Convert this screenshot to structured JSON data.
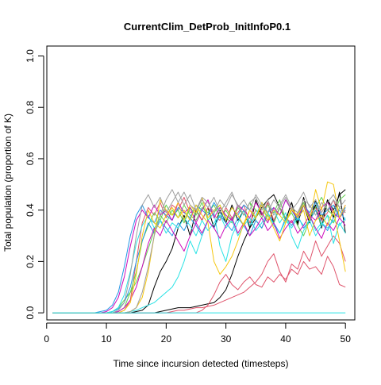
{
  "chart_data": {
    "type": "line",
    "title": "CurrentClim_DetProb_InitInfoP0.1",
    "xlabel": "Time since incursion detected (timesteps)",
    "ylabel": "Total population (proportion of K)",
    "xlim": [
      1,
      50
    ],
    "ylim": [
      0,
      1
    ],
    "x_ticks": [
      0,
      10,
      20,
      30,
      40,
      50
    ],
    "y_ticks": [
      0.0,
      0.2,
      0.4,
      0.6,
      0.8,
      1.0
    ],
    "y_tick_labels": [
      "0.0",
      "0.2",
      "0.4",
      "0.6",
      "0.8",
      "1.0"
    ],
    "grid": false,
    "legend": "none",
    "x": [
      1,
      2,
      3,
      4,
      5,
      6,
      7,
      8,
      9,
      10,
      11,
      12,
      13,
      14,
      15,
      16,
      17,
      18,
      19,
      20,
      21,
      22,
      23,
      24,
      25,
      26,
      27,
      28,
      29,
      30,
      31,
      32,
      33,
      34,
      35,
      36,
      37,
      38,
      39,
      40,
      41,
      42,
      43,
      44,
      45,
      46,
      47,
      48,
      49,
      50
    ],
    "series": [
      {
        "color": "#000000",
        "values": [
          0,
          0,
          0,
          0,
          0,
          0,
          0,
          0,
          0,
          0,
          0,
          0,
          0,
          0,
          0.005,
          0.01,
          0.03,
          0.1,
          0.16,
          0.2,
          0.25,
          0.33,
          0.38,
          0.3,
          0.4,
          0.36,
          0.41,
          0.33,
          0.4,
          0.35,
          0.42,
          0.36,
          0.4,
          0.33,
          0.44,
          0.38,
          0.43,
          0.35,
          0.41,
          0.36,
          0.43,
          0.34,
          0.45,
          0.36,
          0.42,
          0.33,
          0.44,
          0.37,
          0.47,
          0.31
        ]
      },
      {
        "color": "#000000",
        "values": [
          0,
          0,
          0,
          0,
          0,
          0,
          0,
          0,
          0,
          0,
          0,
          0,
          0,
          0,
          0,
          0,
          0,
          0,
          0.005,
          0.01,
          0.015,
          0.02,
          0.02,
          0.02,
          0.025,
          0.03,
          0.035,
          0.04,
          0.06,
          0.09,
          0.15,
          0.22,
          0.28,
          0.33,
          0.37,
          0.41,
          0.44,
          0.46,
          0.41,
          0.36,
          0.43,
          0.35,
          0.42,
          0.35,
          0.44,
          0.36,
          0.44,
          0.4,
          0.46,
          0.48
        ]
      },
      {
        "color": "#DF536B",
        "values": [
          0,
          0,
          0,
          0,
          0,
          0,
          0,
          0,
          0,
          0,
          0,
          0,
          0,
          0,
          0,
          0,
          0,
          0,
          0,
          0,
          0.005,
          0.01,
          0.01,
          0.015,
          0.02,
          0.02,
          0.025,
          0.03,
          0.04,
          0.05,
          0.06,
          0.07,
          0.08,
          0.1,
          0.12,
          0.15,
          0.2,
          0.23,
          0.16,
          0.12,
          0.19,
          0.17,
          0.24,
          0.2,
          0.28,
          0.22,
          0.26,
          0.3,
          0.27,
          0.2
        ]
      },
      {
        "color": "#DF536B",
        "values": [
          0,
          0,
          0,
          0,
          0,
          0,
          0,
          0,
          0,
          0,
          0,
          0,
          0.01,
          0.05,
          0.2,
          0.35,
          0.41,
          0.38,
          0.43,
          0.37,
          0.42,
          0.4,
          0.45,
          0.39,
          0.4,
          0.36,
          0.41,
          0.38,
          0.36,
          0.41,
          0.37,
          0.39,
          0.42,
          0.35,
          0.4,
          0.38,
          0.43,
          0.36,
          0.41,
          0.37,
          0.35,
          0.39,
          0.43,
          0.38,
          0.41,
          0.36,
          0.39,
          0.44,
          0.37,
          0.4
        ]
      },
      {
        "color": "#DF536B",
        "values": [
          0,
          0,
          0,
          0,
          0,
          0,
          0,
          0,
          0,
          0,
          0,
          0,
          0,
          0,
          0,
          0,
          0,
          0,
          0,
          0,
          0,
          0,
          0,
          0,
          0,
          0.01,
          0.03,
          0.07,
          0.12,
          0.15,
          0.11,
          0.09,
          0.12,
          0.14,
          0.11,
          0.1,
          0.14,
          0.12,
          0.15,
          0.13,
          0.17,
          0.15,
          0.2,
          0.17,
          0.18,
          0.15,
          0.22,
          0.18,
          0.11,
          0.1
        ]
      },
      {
        "color": "#61D04F",
        "values": [
          0,
          0,
          0,
          0,
          0,
          0,
          0,
          0,
          0,
          0,
          0,
          0.005,
          0.02,
          0.08,
          0.16,
          0.28,
          0.34,
          0.39,
          0.36,
          0.42,
          0.38,
          0.4,
          0.35,
          0.41,
          0.38,
          0.43,
          0.36,
          0.39,
          0.42,
          0.37,
          0.35,
          0.41,
          0.38,
          0.43,
          0.36,
          0.33,
          0.38,
          0.35,
          0.41,
          0.36,
          0.39,
          0.34,
          0.3,
          0.36,
          0.4,
          0.34,
          0.38,
          0.35,
          0.41,
          0.39
        ]
      },
      {
        "color": "#61D04F",
        "values": [
          0,
          0,
          0,
          0,
          0,
          0,
          0,
          0,
          0,
          0,
          0.005,
          0.02,
          0.05,
          0.08,
          0.12,
          0.18,
          0.25,
          0.32,
          0.38,
          0.35,
          0.4,
          0.37,
          0.42,
          0.38,
          0.36,
          0.41,
          0.39,
          0.42,
          0.37,
          0.4,
          0.36,
          0.42,
          0.38,
          0.43,
          0.4,
          0.37,
          0.42,
          0.39,
          0.44,
          0.36,
          0.4,
          0.38,
          0.43,
          0.37,
          0.41,
          0.45,
          0.4,
          0.38,
          0.44,
          0.46
        ]
      },
      {
        "color": "#2297E6",
        "values": [
          0,
          0,
          0,
          0,
          0,
          0,
          0,
          0,
          0.005,
          0.01,
          0.03,
          0.08,
          0.18,
          0.3,
          0.38,
          0.42,
          0.37,
          0.35,
          0.4,
          0.38,
          0.36,
          0.41,
          0.39,
          0.37,
          0.42,
          0.4,
          0.38,
          0.43,
          0.39,
          0.36,
          0.41,
          0.38,
          0.42,
          0.4,
          0.37,
          0.43,
          0.39,
          0.41,
          0.38,
          0.44,
          0.4,
          0.36,
          0.42,
          0.39,
          0.43,
          0.38,
          0.4,
          0.42,
          0.37,
          0.41
        ]
      },
      {
        "color": "#2297E6",
        "values": [
          0,
          0,
          0,
          0,
          0,
          0,
          0,
          0,
          0,
          0,
          0.005,
          0.015,
          0.04,
          0.1,
          0.2,
          0.28,
          0.35,
          0.31,
          0.36,
          0.33,
          0.3,
          0.35,
          0.32,
          0.37,
          0.34,
          0.3,
          0.36,
          0.33,
          0.38,
          0.35,
          0.32,
          0.37,
          0.34,
          0.3,
          0.36,
          0.33,
          0.39,
          0.35,
          0.31,
          0.37,
          0.34,
          0.38,
          0.33,
          0.36,
          0.4,
          0.35,
          0.32,
          0.37,
          0.4,
          0.36
        ]
      },
      {
        "color": "#28E2E5",
        "values": [
          0,
          0,
          0,
          0,
          0,
          0,
          0,
          0,
          0,
          0,
          0,
          0,
          0,
          0.005,
          0.01,
          0.02,
          0.03,
          0.04,
          0.06,
          0.08,
          0.1,
          0.14,
          0.2,
          0.28,
          0.23,
          0.3,
          0.36,
          0.39,
          0.26,
          0.2,
          0.3,
          0.35,
          0.4,
          0.34,
          0.38,
          0.43,
          0.36,
          0.4,
          0.35,
          0.39,
          0.3,
          0.25,
          0.32,
          0.36,
          0.3,
          0.34,
          0.38,
          0.27,
          0.35,
          0.31
        ]
      },
      {
        "color": "#28E2E5",
        "values": [
          0,
          0,
          0,
          0,
          0,
          0,
          0,
          0,
          0,
          0,
          0.005,
          0.02,
          0.07,
          0.16,
          0.27,
          0.34,
          0.38,
          0.33,
          0.36,
          0.31,
          0.35,
          0.33,
          0.37,
          0.34,
          0.3,
          0.36,
          0.32,
          0.35,
          0.38,
          0.33,
          0.36,
          0.3,
          0.34,
          0.37,
          0.32,
          0.35,
          0.39,
          0.34,
          0.31,
          0.36,
          0.33,
          0.37,
          0.34,
          0.38,
          0.32,
          0.35,
          0.33,
          0.36,
          0.34,
          0.37
        ]
      },
      {
        "color": "#CD0BBC",
        "values": [
          0,
          0,
          0,
          0,
          0,
          0,
          0,
          0,
          0,
          0.005,
          0.02,
          0.06,
          0.14,
          0.26,
          0.36,
          0.4,
          0.37,
          0.42,
          0.38,
          0.4,
          0.36,
          0.43,
          0.39,
          0.41,
          0.35,
          0.4,
          0.44,
          0.37,
          0.41,
          0.38,
          0.36,
          0.42,
          0.4,
          0.37,
          0.43,
          0.39,
          0.35,
          0.41,
          0.38,
          0.44,
          0.4,
          0.37,
          0.42,
          0.38,
          0.36,
          0.41,
          0.43,
          0.39,
          0.37,
          0.42
        ]
      },
      {
        "color": "#CD0BBC",
        "values": [
          0,
          0,
          0,
          0,
          0,
          0,
          0,
          0,
          0,
          0,
          0,
          0.005,
          0.02,
          0.05,
          0.1,
          0.18,
          0.27,
          0.33,
          0.3,
          0.36,
          0.32,
          0.28,
          0.24,
          0.3,
          0.35,
          0.31,
          0.36,
          0.33,
          0.29,
          0.34,
          0.37,
          0.31,
          0.35,
          0.3,
          0.33,
          0.37,
          0.32,
          0.35,
          0.29,
          0.33,
          0.36,
          0.31,
          0.34,
          0.38,
          0.33,
          0.29,
          0.35,
          0.32,
          0.37,
          0.34
        ]
      },
      {
        "color": "#F5C710",
        "values": [
          0,
          0,
          0,
          0,
          0,
          0,
          0,
          0,
          0,
          0,
          0,
          0,
          0,
          0.005,
          0.02,
          0.06,
          0.16,
          0.3,
          0.44,
          0.4,
          0.38,
          0.43,
          0.36,
          0.42,
          0.39,
          0.45,
          0.37,
          0.4,
          0.42,
          0.36,
          0.41,
          0.38,
          0.34,
          0.4,
          0.37,
          0.43,
          0.38,
          0.33,
          0.28,
          0.35,
          0.4,
          0.38,
          0.42,
          0.36,
          0.48,
          0.4,
          0.51,
          0.5,
          0.37,
          0.42
        ]
      },
      {
        "color": "#F5C710",
        "values": [
          0,
          0,
          0,
          0,
          0,
          0,
          0,
          0,
          0,
          0,
          0,
          0,
          0.01,
          0.04,
          0.15,
          0.3,
          0.4,
          0.35,
          0.33,
          0.38,
          0.41,
          0.37,
          0.4,
          0.36,
          0.42,
          0.38,
          0.35,
          0.2,
          0.15,
          0.18,
          0.22,
          0.28,
          0.35,
          0.4,
          0.37,
          0.42,
          0.36,
          0.4,
          0.38,
          0.35,
          0.41,
          0.37,
          0.4,
          0.3,
          0.36,
          0.38,
          0.34,
          0.4,
          0.28,
          0.16
        ]
      },
      {
        "color": "#9E9E9E",
        "values": [
          0,
          0,
          0,
          0,
          0,
          0,
          0,
          0,
          0,
          0,
          0,
          0.01,
          0.04,
          0.15,
          0.3,
          0.42,
          0.46,
          0.41,
          0.45,
          0.39,
          0.43,
          0.47,
          0.42,
          0.46,
          0.4,
          0.44,
          0.41,
          0.45,
          0.39,
          0.43,
          0.47,
          0.41,
          0.44,
          0.4,
          0.46,
          0.42,
          0.39,
          0.44,
          0.41,
          0.45,
          0.4,
          0.43,
          0.47,
          0.41,
          0.44,
          0.39,
          0.43,
          0.46,
          0.41,
          0.44
        ]
      },
      {
        "color": "#9E9E9E",
        "values": [
          0,
          0,
          0,
          0,
          0,
          0,
          0,
          0,
          0,
          0,
          0,
          0,
          0,
          0.005,
          0.02,
          0.08,
          0.18,
          0.3,
          0.38,
          0.44,
          0.48,
          0.43,
          0.47,
          0.42,
          0.4,
          0.45,
          0.43,
          0.39,
          0.44,
          0.41,
          0.46,
          0.42,
          0.38,
          0.43,
          0.45,
          0.4,
          0.44,
          0.38,
          0.42,
          0.46,
          0.41,
          0.39,
          0.44,
          0.42,
          0.38,
          0.43,
          0.4,
          0.44,
          0.41,
          0.39
        ]
      },
      {
        "color": "#28E2E5",
        "values": [
          0,
          0,
          0,
          0,
          0,
          0,
          0,
          0,
          0,
          0,
          0,
          0,
          0,
          0,
          0,
          0,
          0,
          0,
          0,
          0,
          0,
          0,
          0,
          0,
          0,
          0,
          0,
          0,
          0,
          0,
          0,
          0,
          0,
          0,
          0,
          0,
          0,
          0,
          0,
          0,
          0,
          0,
          0,
          0,
          0,
          0,
          0,
          0,
          0,
          0
        ]
      }
    ]
  }
}
